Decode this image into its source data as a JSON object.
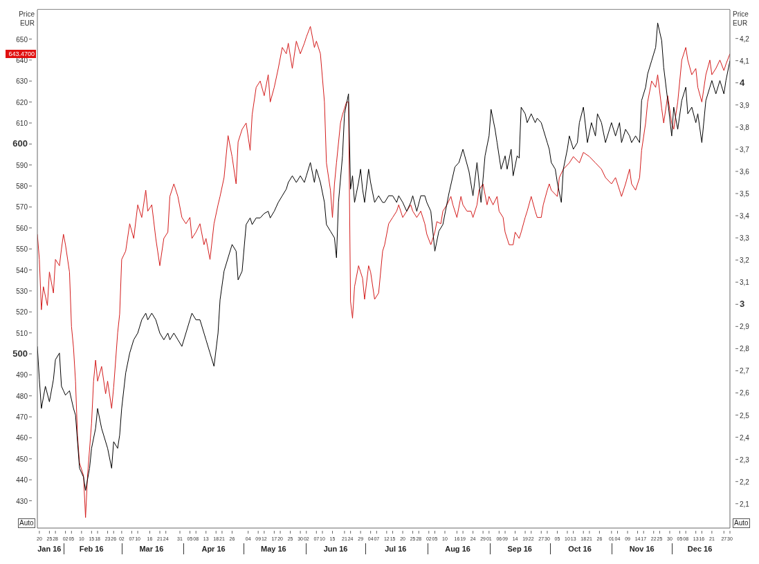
{
  "chart_data": {
    "type": "line",
    "ylabel": "Price EUR",
    "y2label": "Price EUR",
    "xlim": [
      "--01-19",
      "--12-30"
    ],
    "xticks": [
      {
        "value": "--01-20",
        "label": "20"
      },
      {
        "value": "--01-25",
        "label": "25"
      },
      {
        "value": "--01-28",
        "label": "28"
      },
      {
        "value": "--02-02",
        "label": "02"
      },
      {
        "value": "--02-05",
        "label": "05"
      },
      {
        "value": "--02-10",
        "label": "10"
      },
      {
        "value": "--02-15",
        "label": "15"
      },
      {
        "value": "--02-18",
        "label": "18"
      },
      {
        "value": "--02-23",
        "label": "23"
      },
      {
        "value": "--02-26",
        "label": "26"
      },
      {
        "value": "--03-02",
        "label": "02"
      },
      {
        "value": "--03-07",
        "label": "07"
      },
      {
        "value": "--03-10",
        "label": "10"
      },
      {
        "value": "--03-16",
        "label": "16"
      },
      {
        "value": "--03-21",
        "label": "21"
      },
      {
        "value": "--03-24",
        "label": "24"
      },
      {
        "value": "--03-31",
        "label": "31"
      },
      {
        "value": "--04-05",
        "label": "05"
      },
      {
        "value": "--04-08",
        "label": "08"
      },
      {
        "value": "--04-13",
        "label": "13"
      },
      {
        "value": "--04-18",
        "label": "18"
      },
      {
        "value": "--04-21",
        "label": "21"
      },
      {
        "value": "--04-26",
        "label": "26"
      },
      {
        "value": "--05-04",
        "label": "04"
      },
      {
        "value": "--05-09",
        "label": "09"
      },
      {
        "value": "--05-12",
        "label": "12"
      },
      {
        "value": "--05-17",
        "label": "17"
      },
      {
        "value": "--05-20",
        "label": "20"
      },
      {
        "value": "--05-25",
        "label": "25"
      },
      {
        "value": "--05-30",
        "label": "30"
      },
      {
        "value": "--06-02",
        "label": "02"
      },
      {
        "value": "--06-07",
        "label": "07"
      },
      {
        "value": "--06-10",
        "label": "10"
      },
      {
        "value": "--06-15",
        "label": "15"
      },
      {
        "value": "--06-21",
        "label": "21"
      },
      {
        "value": "--06-24",
        "label": "24"
      },
      {
        "value": "--06-29",
        "label": "29"
      },
      {
        "value": "--07-04",
        "label": "04"
      },
      {
        "value": "--07-07",
        "label": "07"
      },
      {
        "value": "--07-12",
        "label": "12"
      },
      {
        "value": "--07-15",
        "label": "15"
      },
      {
        "value": "--07-20",
        "label": "20"
      },
      {
        "value": "--07-25",
        "label": "25"
      },
      {
        "value": "--07-28",
        "label": "28"
      },
      {
        "value": "--08-02",
        "label": "02"
      },
      {
        "value": "--08-05",
        "label": "05"
      },
      {
        "value": "--08-10",
        "label": "10"
      },
      {
        "value": "--08-16",
        "label": "16"
      },
      {
        "value": "--08-19",
        "label": "19"
      },
      {
        "value": "--08-24",
        "label": "24"
      },
      {
        "value": "--08-29",
        "label": "29"
      },
      {
        "value": "--09-01",
        "label": "01"
      },
      {
        "value": "--09-06",
        "label": "06"
      },
      {
        "value": "--09-09",
        "label": "09"
      },
      {
        "value": "--09-14",
        "label": "14"
      },
      {
        "value": "--09-19",
        "label": "19"
      },
      {
        "value": "--09-22",
        "label": "22"
      },
      {
        "value": "--09-27",
        "label": "27"
      },
      {
        "value": "--09-30",
        "label": "30"
      },
      {
        "value": "--10-05",
        "label": "05"
      },
      {
        "value": "--10-10",
        "label": "10"
      },
      {
        "value": "--10-13",
        "label": "13"
      },
      {
        "value": "--10-18",
        "label": "18"
      },
      {
        "value": "--10-21",
        "label": "21"
      },
      {
        "value": "--10-26",
        "label": "26"
      },
      {
        "value": "--11-01",
        "label": "01"
      },
      {
        "value": "--11-04",
        "label": "04"
      },
      {
        "value": "--11-09",
        "label": "09"
      },
      {
        "value": "--11-14",
        "label": "14"
      },
      {
        "value": "--11-17",
        "label": "17"
      },
      {
        "value": "--11-22",
        "label": "22"
      },
      {
        "value": "--11-25",
        "label": "25"
      },
      {
        "value": "--11-30",
        "label": "30"
      },
      {
        "value": "--12-05",
        "label": "05"
      },
      {
        "value": "--12-08",
        "label": "08"
      },
      {
        "value": "--12-13",
        "label": "13"
      },
      {
        "value": "--12-16",
        "label": "16"
      },
      {
        "value": "--12-21",
        "label": "21"
      },
      {
        "value": "--12-27",
        "label": "27"
      },
      {
        "value": "--12-30",
        "label": "30"
      }
    ],
    "x2lim": [
      "2016-01-19",
      "2016-12-30"
    ],
    "x2ticks": [
      {
        "value": "2016-01-25",
        "label": "Jan 16"
      },
      {
        "value": "2016-02-15",
        "label": "Feb 16"
      },
      {
        "value": "2016-03-16",
        "label": "Mar 16"
      },
      {
        "value": "2016-04-16",
        "label": "Apr 16"
      },
      {
        "value": "2016-05-16",
        "label": "May 16"
      },
      {
        "value": "2016-06-16",
        "label": "Jun 16"
      },
      {
        "value": "2016-07-16",
        "label": "Jul 16"
      },
      {
        "value": "2016-08-16",
        "label": "Aug 16"
      },
      {
        "value": "2016-09-16",
        "label": "Sep 16"
      },
      {
        "value": "2016-10-16",
        "label": "Oct 16"
      },
      {
        "value": "2016-11-16",
        "label": "Nov 16"
      },
      {
        "value": "2016-12-15",
        "label": "Dec 16"
      }
    ],
    "ylim": [
      417,
      664
    ],
    "yticks": [
      430,
      440,
      450,
      460,
      470,
      480,
      490,
      500,
      510,
      520,
      530,
      540,
      550,
      560,
      570,
      580,
      590,
      600,
      610,
      620,
      630,
      640,
      650
    ],
    "y2lim": [
      1.99,
      4.33
    ],
    "y2ticks": [
      {
        "value": 2.1,
        "label": "2,1"
      },
      {
        "value": 2.2,
        "label": "2,2"
      },
      {
        "value": 2.3,
        "label": "2,3"
      },
      {
        "value": 2.4,
        "label": "2,4"
      },
      {
        "value": 2.5,
        "label": "2,5"
      },
      {
        "value": 2.6,
        "label": "2,6"
      },
      {
        "value": 2.7,
        "label": "2,7"
      },
      {
        "value": 2.8,
        "label": "2,8"
      },
      {
        "value": 2.9,
        "label": "2,9"
      },
      3,
      {
        "value": 3.1,
        "label": "3,1"
      },
      {
        "value": 3.2,
        "label": "3,2"
      },
      {
        "value": 3.3,
        "label": "3,3"
      },
      {
        "value": 3.4,
        "label": "3,4"
      },
      {
        "value": 3.5,
        "label": "3,5"
      },
      {
        "value": 3.6,
        "label": "3,6"
      },
      {
        "value": 3.7,
        "label": "3,7"
      },
      {
        "value": 3.8,
        "label": "3,8"
      },
      {
        "value": 3.9,
        "label": "3,9"
      },
      4,
      {
        "value": 4.1,
        "label": "4,1"
      },
      {
        "value": 4.2,
        "label": "4,2"
      }
    ],
    "annotations": [
      "643.4700",
      "Auto",
      "Auto"
    ],
    "series": [
      {
        "color": "#d41c1c",
        "x": [
          "--01-19",
          "--01-20",
          "--01-21",
          "--01-22",
          "--01-24",
          "--01-25",
          "--01-27",
          "--01-28",
          "--01-30",
          "--01-31",
          "--02-01",
          "--02-02",
          "--02-04",
          "--02-05",
          "--02-06",
          "--02-07",
          "--02-08",
          "--02-09",
          "--02-11",
          "--02-12",
          "--02-13",
          "--02-15",
          "--02-16",
          "--02-17",
          "--02-18",
          "--02-20",
          "--02-22",
          "--02-23",
          "--02-25",
          "--02-26",
          "--02-28",
          "--03-01",
          "--03-02",
          "--03-04",
          "--03-06",
          "--03-08",
          "--03-10",
          "--03-12",
          "--03-14",
          "--03-15",
          "--03-17",
          "--03-19",
          "--03-21",
          "--03-23",
          "--03-25",
          "--03-26",
          "--03-28",
          "--03-30",
          "--04-01",
          "--04-03",
          "--04-05",
          "--04-06",
          "--04-08",
          "--04-10",
          "--04-12",
          "--04-13",
          "--04-15",
          "--04-17",
          "--04-19",
          "--04-20",
          "--04-22",
          "--04-24",
          "--04-26",
          "--04-28",
          "--04-29",
          "--05-01",
          "--05-03",
          "--05-05",
          "--05-06",
          "--05-08",
          "--05-10",
          "--05-12",
          "--05-14",
          "--05-15",
          "--05-17",
          "--05-19",
          "--05-21",
          "--05-23",
          "--05-24",
          "--05-26",
          "--05-28",
          "--05-30",
          "--06-01",
          "--06-02",
          "--06-04",
          "--06-06",
          "--06-07",
          "--06-09",
          "--06-11",
          "--06-12",
          "--06-14",
          "--06-15",
          "--06-16",
          "--06-17",
          "--06-19",
          "--06-20",
          "--06-22",
          "--06-23",
          "--06-24",
          "--06-25",
          "--06-26",
          "--06-28",
          "--06-29",
          "--06-30",
          "--07-01",
          "--07-03",
          "--07-04",
          "--07-06",
          "--07-08",
          "--07-10",
          "--07-11",
          "--07-13",
          "--07-15",
          "--07-17",
          "--07-18",
          "--07-20",
          "--07-22",
          "--07-24",
          "--07-25",
          "--07-27",
          "--07-29",
          "--07-31",
          "--08-01",
          "--08-03",
          "--08-05",
          "--08-06",
          "--08-08",
          "--08-09",
          "--08-11",
          "--08-13",
          "--08-14",
          "--08-16",
          "--08-18",
          "--08-19",
          "--08-21",
          "--08-23",
          "--08-24",
          "--08-26",
          "--08-27",
          "--08-29",
          "--08-31",
          "--09-01",
          "--09-03",
          "--09-05",
          "--09-06",
          "--09-08",
          "--09-09",
          "--09-11",
          "--09-13",
          "--09-14",
          "--09-16",
          "--09-17",
          "--09-19",
          "--09-20",
          "--09-22",
          "--09-24",
          "--09-25",
          "--09-27",
          "--09-28",
          "--09-30",
          "--10-01",
          "--10-02",
          "--10-05",
          "--10-06",
          "--10-08",
          "--10-11",
          "--10-13",
          "--10-16",
          "--10-18",
          "--10-21",
          "--10-24",
          "--10-27",
          "--10-29",
          "--11-01",
          "--11-03",
          "--11-05",
          "--11-06",
          "--11-08",
          "--11-10",
          "--11-11",
          "--11-13",
          "--11-15",
          "--11-16",
          "--11-18",
          "--11-19",
          "--11-21",
          "--11-23",
          "--11-24",
          "--11-26",
          "--11-27",
          "--11-29",
          "--12-01",
          "--12-02",
          "--12-04",
          "--12-06",
          "--12-08",
          "--12-09",
          "--12-11",
          "--12-13",
          "--12-14",
          "--12-16",
          "--12-18",
          "--12-20",
          "--12-21",
          "--12-23",
          "--12-25",
          "--12-27",
          "--12-28",
          "--12-30"
        ],
        "values": [
          557,
          545,
          521,
          532,
          523,
          539,
          529,
          545,
          542,
          550,
          557,
          552,
          539,
          513,
          503,
          487,
          461,
          448,
          442,
          422,
          442,
          467,
          487,
          497,
          487,
          494,
          481,
          487,
          474,
          484,
          510,
          519,
          545,
          549,
          562,
          555,
          571,
          565,
          578,
          568,
          571,
          555,
          542,
          555,
          558,
          575,
          581,
          575,
          565,
          562,
          565,
          555,
          558,
          562,
          552,
          555,
          545,
          562,
          571,
          575,
          584,
          604,
          594,
          581,
          601,
          607,
          610,
          597,
          614,
          627,
          630,
          623,
          633,
          620,
          627,
          636,
          646,
          643,
          648,
          636,
          649,
          643,
          648,
          651,
          656,
          646,
          649,
          643,
          620,
          591,
          578,
          565,
          581,
          591,
          610,
          614,
          620,
          620,
          525,
          517,
          532,
          542,
          539,
          536,
          526,
          542,
          539,
          526,
          529,
          549,
          552,
          562,
          565,
          568,
          571,
          565,
          568,
          571,
          568,
          565,
          568,
          562,
          557,
          552,
          558,
          563,
          562,
          568,
          571,
          575,
          571,
          565,
          575,
          571,
          568,
          568,
          565,
          571,
          578,
          581,
          571,
          575,
          571,
          575,
          568,
          565,
          558,
          552,
          552,
          558,
          555,
          558,
          565,
          568,
          575,
          568,
          565,
          565,
          571,
          578,
          581,
          578,
          575,
          584,
          588,
          591,
          594,
          591,
          596,
          594,
          591,
          588,
          584,
          581,
          584,
          578,
          575,
          581,
          588,
          581,
          578,
          584,
          597,
          610,
          620,
          630,
          627,
          633,
          617,
          610,
          623,
          610,
          607,
          620,
          640,
          646,
          640,
          633,
          636,
          627,
          620,
          633,
          640,
          633,
          636,
          640,
          635,
          638,
          643
        ]
      },
      {
        "color": "#000000",
        "axis": "y2",
        "x": [
          "--01-19",
          "--01-20",
          "--01-21",
          "--01-23",
          "--01-25",
          "--01-27",
          "--01-28",
          "--01-30",
          "--01-31",
          "--02-01",
          "--02-02",
          "--02-04",
          "--02-06",
          "--02-07",
          "--02-08",
          "--02-09",
          "--02-11",
          "--02-12",
          "--02-14",
          "--02-15",
          "--02-17",
          "--02-18",
          "--02-20",
          "--02-22",
          "--02-23",
          "--02-25",
          "--02-26",
          "--02-28",
          "--03-01",
          "--03-02",
          "--03-04",
          "--03-06",
          "--03-08",
          "--03-10",
          "--03-12",
          "--03-14",
          "--03-15",
          "--03-17",
          "--03-19",
          "--03-21",
          "--03-23",
          "--03-25",
          "--03-26",
          "--03-28",
          "--03-30",
          "--04-01",
          "--04-03",
          "--04-05",
          "--04-06",
          "--04-08",
          "--04-10",
          "--04-12",
          "--04-13",
          "--04-15",
          "--04-17",
          "--04-19",
          "--04-20",
          "--04-22",
          "--04-24",
          "--04-26",
          "--04-28",
          "--04-29",
          "--05-01",
          "--05-03",
          "--05-05",
          "--05-06",
          "--05-08",
          "--05-10",
          "--05-12",
          "--05-14",
          "--05-15",
          "--05-17",
          "--05-19",
          "--05-21",
          "--05-23",
          "--05-24",
          "--05-26",
          "--05-28",
          "--05-30",
          "--06-01",
          "--06-02",
          "--06-04",
          "--06-06",
          "--06-07",
          "--06-09",
          "--06-11",
          "--06-12",
          "--06-14",
          "--06-16",
          "--06-17",
          "--06-18",
          "--06-20",
          "--06-21",
          "--06-23",
          "--06-24",
          "--06-25",
          "--06-26",
          "--06-28",
          "--06-29",
          "--06-30",
          "--07-01",
          "--07-03",
          "--07-04",
          "--07-06",
          "--07-08",
          "--07-10",
          "--07-11",
          "--07-13",
          "--07-15",
          "--07-17",
          "--07-18",
          "--07-20",
          "--07-22",
          "--07-24",
          "--07-25",
          "--07-27",
          "--07-29",
          "--07-31",
          "--08-01",
          "--08-03",
          "--08-05",
          "--08-07",
          "--08-09",
          "--08-12",
          "--08-15",
          "--08-17",
          "--08-19",
          "--08-22",
          "--08-24",
          "--08-26",
          "--08-28",
          "--08-30",
          "--09-01",
          "--09-02",
          "--09-04",
          "--09-05",
          "--09-07",
          "--09-09",
          "--09-10",
          "--09-12",
          "--09-13",
          "--09-15",
          "--09-16",
          "--09-17",
          "--09-19",
          "--09-20",
          "--09-22",
          "--09-24",
          "--09-25",
          "--09-27",
          "--09-28",
          "--09-30",
          "--10-01",
          "--10-02",
          "--10-04",
          "--10-05",
          "--10-07",
          "--10-08",
          "--10-10",
          "--10-11",
          "--10-13",
          "--10-15",
          "--10-16",
          "--10-18",
          "--10-20",
          "--10-22",
          "--10-24",
          "--10-25",
          "--10-27",
          "--10-29",
          "--11-01",
          "--11-03",
          "--11-05",
          "--11-06",
          "--11-08",
          "--11-10",
          "--11-11",
          "--11-13",
          "--11-15",
          "--11-16",
          "--11-18",
          "--11-19",
          "--11-21",
          "--11-23",
          "--11-24",
          "--11-26",
          "--11-27",
          "--11-29",
          "--12-01",
          "--12-02",
          "--12-04",
          "--12-06",
          "--12-08",
          "--12-09",
          "--12-11",
          "--12-13",
          "--12-14",
          "--12-16",
          "--12-18",
          "--12-20",
          "--12-21",
          "--12-23",
          "--12-25",
          "--12-27",
          "--12-28",
          "--12-30"
        ],
        "values": [
          2.81,
          2.66,
          2.53,
          2.63,
          2.56,
          2.66,
          2.75,
          2.78,
          2.63,
          2.61,
          2.59,
          2.61,
          2.53,
          2.5,
          2.38,
          2.26,
          2.22,
          2.16,
          2.26,
          2.35,
          2.44,
          2.53,
          2.44,
          2.38,
          2.35,
          2.26,
          2.38,
          2.35,
          2.41,
          2.53,
          2.69,
          2.78,
          2.84,
          2.87,
          2.93,
          2.96,
          2.93,
          2.96,
          2.93,
          2.87,
          2.84,
          2.87,
          2.84,
          2.87,
          2.84,
          2.81,
          2.87,
          2.93,
          2.96,
          2.93,
          2.93,
          2.87,
          2.84,
          2.78,
          2.72,
          2.87,
          3.02,
          3.15,
          3.21,
          3.27,
          3.24,
          3.11,
          3.15,
          3.36,
          3.39,
          3.36,
          3.39,
          3.39,
          3.41,
          3.42,
          3.39,
          3.42,
          3.46,
          3.49,
          3.52,
          3.55,
          3.58,
          3.55,
          3.58,
          3.55,
          3.58,
          3.64,
          3.55,
          3.61,
          3.55,
          3.46,
          3.36,
          3.33,
          3.3,
          3.21,
          3.46,
          3.67,
          3.86,
          3.95,
          3.52,
          3.58,
          3.46,
          3.55,
          3.61,
          3.52,
          3.46,
          3.61,
          3.55,
          3.46,
          3.49,
          3.46,
          3.46,
          3.49,
          3.49,
          3.46,
          3.49,
          3.46,
          3.42,
          3.46,
          3.49,
          3.42,
          3.49,
          3.49,
          3.46,
          3.42,
          3.24,
          3.33,
          3.36,
          3.5,
          3.62,
          3.64,
          3.7,
          3.6,
          3.49,
          3.64,
          3.46,
          3.67,
          3.76,
          3.88,
          3.79,
          3.73,
          3.61,
          3.67,
          3.61,
          3.7,
          3.58,
          3.67,
          3.66,
          3.89,
          3.86,
          3.82,
          3.86,
          3.82,
          3.84,
          3.82,
          3.79,
          3.73,
          3.7,
          3.64,
          3.61,
          3.55,
          3.46,
          3.61,
          3.7,
          3.76,
          3.7,
          3.73,
          3.82,
          3.89,
          3.73,
          3.82,
          3.76,
          3.86,
          3.82,
          3.73,
          3.82,
          3.76,
          3.82,
          3.73,
          3.79,
          3.76,
          3.73,
          3.76,
          3.73,
          3.92,
          3.98,
          4.04,
          4.1,
          4.16,
          4.27,
          4.19,
          4.07,
          3.92,
          3.76,
          3.89,
          3.79,
          3.92,
          3.98,
          3.86,
          3.89,
          3.82,
          3.86,
          3.73,
          3.92,
          3.98,
          4.01,
          3.95,
          4.01,
          3.95,
          4.01,
          4.1
        ]
      }
    ]
  }
}
